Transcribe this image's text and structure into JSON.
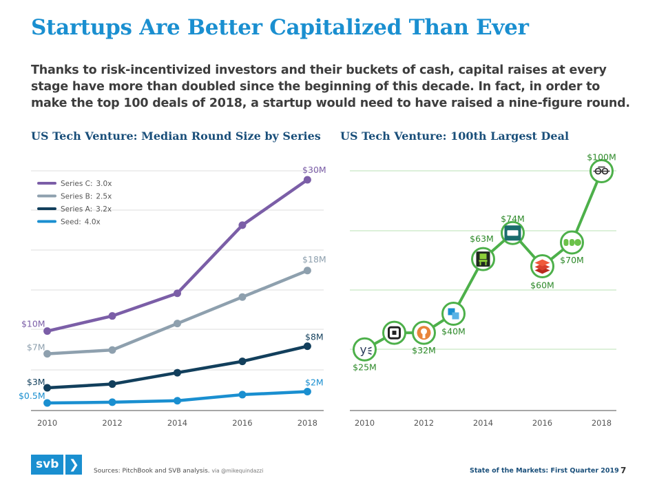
{
  "title": "Startups Are Better Capitalized Than Ever",
  "intro": "Thanks to risk-incentivized investors and their buckets of cash, capital raises at every stage have more than doubled since the beginning of this decade. In fact, in order to make the top 100 deals of 2018, a startup would need to have raised a nine-figure round.",
  "chart_data": [
    {
      "type": "line",
      "title": "US Tech Venture: Median Round Size by Series",
      "xlabel": "",
      "ylabel": "",
      "x": [
        2010,
        2011,
        2012,
        2013,
        2014,
        2015,
        2016,
        2017,
        2018
      ],
      "xticks": [
        "2010",
        "2012",
        "2014",
        "2016",
        "2018"
      ],
      "ylim": [
        -0.5,
        33
      ],
      "grid": true,
      "legend_position": "top-left",
      "series": [
        {
          "name": "Series C:",
          "multiplier": "3.0x",
          "color": "#7b5ea7",
          "x": [
            2010,
            2012,
            2014,
            2016,
            2018
          ],
          "values": [
            10,
            12,
            15,
            24,
            30
          ],
          "start_label": "$10M",
          "end_label": "$30M"
        },
        {
          "name": "Series B:",
          "multiplier": "2.5x",
          "color": "#8ea0ae",
          "x": [
            2010,
            2012,
            2014,
            2016,
            2018
          ],
          "values": [
            7,
            7.5,
            11,
            14.5,
            18
          ],
          "start_label": "$7M",
          "end_label": "$18M"
        },
        {
          "name": "Series A:",
          "multiplier": "3.2x",
          "color": "#123f5c",
          "x": [
            2010,
            2012,
            2014,
            2016,
            2018
          ],
          "values": [
            2.5,
            3,
            4.5,
            6,
            8
          ],
          "start_label": "$3M",
          "end_label": "$8M"
        },
        {
          "name": "Seed:",
          "multiplier": "4.0x",
          "color": "#1a8fd0",
          "x": [
            2010,
            2012,
            2014,
            2016,
            2018
          ],
          "values": [
            0.5,
            0.6,
            0.8,
            1.6,
            2
          ],
          "start_label": "$0.5M",
          "end_label": "$2M"
        }
      ]
    },
    {
      "type": "line",
      "title": "US Tech Venture: 100th Largest Deal",
      "xlabel": "",
      "ylabel": "",
      "xticks": [
        "2010",
        "2012",
        "2014",
        "2016",
        "2018"
      ],
      "ylim": [
        0,
        105
      ],
      "grid": true,
      "color": "#4db04a",
      "points": [
        {
          "x": 2010,
          "value": 25,
          "label": "$25M",
          "icon": "yext-logo-icon",
          "label_pos": "below"
        },
        {
          "x": 2011,
          "value": 32,
          "icon": "square-logo-icon",
          "label_pos": "none"
        },
        {
          "x": 2012,
          "value": 32,
          "label": "$32M",
          "icon": "orange-brand-logo-icon",
          "label_pos": "below"
        },
        {
          "x": 2013,
          "value": 40,
          "label": "$40M",
          "icon": "blue-cube-logo-icon",
          "label_pos": "below-right"
        },
        {
          "x": 2014,
          "value": 63,
          "label": "$63M",
          "icon": "green-chair-logo-icon",
          "label_pos": "above"
        },
        {
          "x": 2015,
          "value": 74,
          "label": "$74M",
          "icon": "tablet-logo-icon",
          "label_pos": "above"
        },
        {
          "x": 2016,
          "value": 60,
          "label": "$60M",
          "icon": "red-layers-logo-icon",
          "label_pos": "below"
        },
        {
          "x": 2017,
          "value": 70,
          "label": "$70M",
          "icon": "duo-logo-icon",
          "label_pos": "below"
        },
        {
          "x": 2018,
          "value": 100,
          "label": "$100M",
          "icon": "bird-logo-icon",
          "label_pos": "above"
        }
      ]
    }
  ],
  "footer": {
    "sources": "Sources: PitchBook and SVB analysis.",
    "via": "via @mikequindazzi",
    "publication": "State of the Markets: First Quarter 2019",
    "page": "7",
    "logo_text": "svb",
    "logo_chevron": "❯"
  }
}
